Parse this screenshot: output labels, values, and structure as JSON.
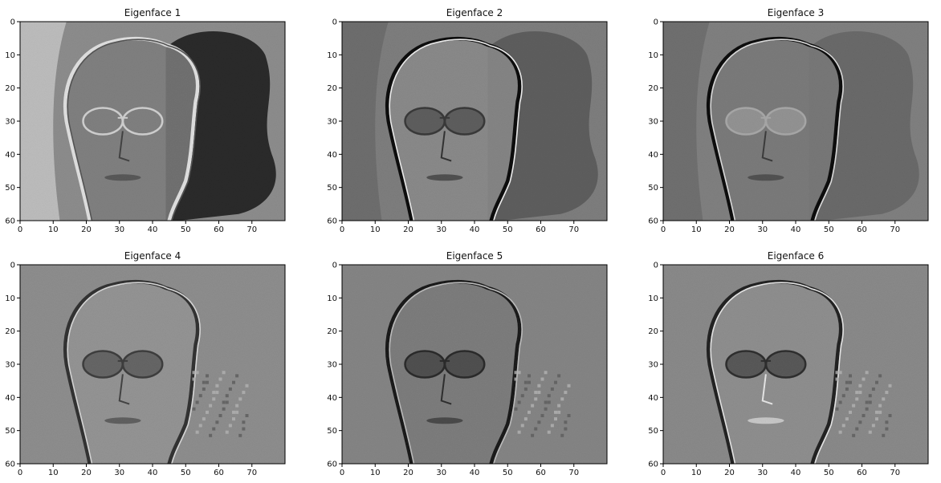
{
  "chart_data": [
    {
      "type": "heatmap",
      "title": "Eigenface 1",
      "xlabel": "",
      "ylabel": "",
      "xlim": [
        0,
        80
      ],
      "ylim": [
        60,
        0
      ],
      "xticks": [
        "0",
        "10",
        "20",
        "30",
        "40",
        "50",
        "60",
        "70"
      ],
      "yticks": [
        "0",
        "10",
        "20",
        "30",
        "40",
        "50",
        "60"
      ],
      "colormap": "gray",
      "grid": false
    },
    {
      "type": "heatmap",
      "title": "Eigenface 2",
      "xlabel": "",
      "ylabel": "",
      "xlim": [
        0,
        80
      ],
      "ylim": [
        60,
        0
      ],
      "xticks": [
        "0",
        "10",
        "20",
        "30",
        "40",
        "50",
        "60",
        "70"
      ],
      "yticks": [
        "0",
        "10",
        "20",
        "30",
        "40",
        "50",
        "60"
      ],
      "colormap": "gray",
      "grid": false
    },
    {
      "type": "heatmap",
      "title": "Eigenface 3",
      "xlabel": "",
      "ylabel": "",
      "xlim": [
        0,
        80
      ],
      "ylim": [
        60,
        0
      ],
      "xticks": [
        "0",
        "10",
        "20",
        "30",
        "40",
        "50",
        "60",
        "70"
      ],
      "yticks": [
        "0",
        "10",
        "20",
        "30",
        "40",
        "50",
        "60"
      ],
      "colormap": "gray",
      "grid": false
    },
    {
      "type": "heatmap",
      "title": "Eigenface 4",
      "xlabel": "",
      "ylabel": "",
      "xlim": [
        0,
        80
      ],
      "ylim": [
        60,
        0
      ],
      "xticks": [
        "0",
        "10",
        "20",
        "30",
        "40",
        "50",
        "60",
        "70"
      ],
      "yticks": [
        "0",
        "10",
        "20",
        "30",
        "40",
        "50",
        "60"
      ],
      "colormap": "gray",
      "grid": false
    },
    {
      "type": "heatmap",
      "title": "Eigenface 5",
      "xlabel": "",
      "ylabel": "",
      "xlim": [
        0,
        80
      ],
      "ylim": [
        60,
        0
      ],
      "xticks": [
        "0",
        "10",
        "20",
        "30",
        "40",
        "50",
        "60",
        "70"
      ],
      "yticks": [
        "0",
        "10",
        "20",
        "30",
        "40",
        "50",
        "60"
      ],
      "colormap": "gray",
      "grid": false
    },
    {
      "type": "heatmap",
      "title": "Eigenface 6",
      "xlabel": "",
      "ylabel": "",
      "xlim": [
        0,
        80
      ],
      "ylim": [
        60,
        0
      ],
      "xticks": [
        "0",
        "10",
        "20",
        "30",
        "40",
        "50",
        "60",
        "70"
      ],
      "yticks": [
        "0",
        "10",
        "20",
        "30",
        "40",
        "50",
        "60"
      ],
      "colormap": "gray",
      "grid": false
    }
  ]
}
